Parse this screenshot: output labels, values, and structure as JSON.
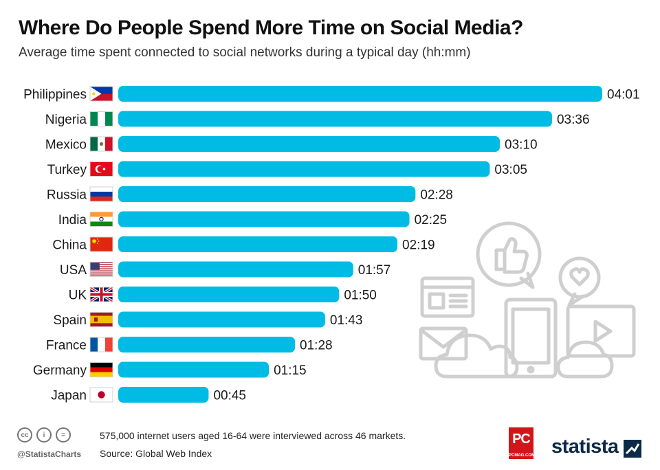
{
  "title": "Where Do People Spend More Time on Social Media?",
  "subtitle": "Average time spent connected to social networks during a typical day (hh:mm)",
  "chart_data": {
    "type": "bar",
    "orientation": "horizontal",
    "bar_color": "#00bce4",
    "categories": [
      "Philippines",
      "Nigeria",
      "Mexico",
      "Turkey",
      "Russia",
      "India",
      "China",
      "USA",
      "UK",
      "Spain",
      "France",
      "Germany",
      "Japan"
    ],
    "values": [
      241,
      216,
      190,
      185,
      148,
      145,
      139,
      117,
      110,
      103,
      88,
      75,
      45
    ],
    "value_labels": [
      "04:01",
      "03:36",
      "03:10",
      "03:05",
      "02:28",
      "02:25",
      "02:19",
      "01:57",
      "01:50",
      "01:43",
      "01:28",
      "01:15",
      "00:45"
    ],
    "value_unit": "minutes",
    "flags": [
      "philippines",
      "nigeria",
      "mexico",
      "turkey",
      "russia",
      "india",
      "china",
      "usa",
      "uk",
      "spain",
      "france",
      "germany",
      "japan"
    ],
    "xlim": [
      0,
      241
    ],
    "grid": false
  },
  "footer": {
    "note": "575,000 internet users aged 16-64 were interviewed across 46 markets.",
    "source": "Source: Global Web Index",
    "handle": "@StatistaCharts",
    "cc_icons": [
      "cc",
      "i",
      "="
    ]
  },
  "logos": {
    "pc_main": "PC",
    "pc_sub": "PCMAG.COM",
    "statista": "statista"
  },
  "illustration_icons": [
    "thumbs-up-bubble-icon",
    "heart-bubble-icon",
    "browser-window-icon",
    "envelope-icon",
    "cloud-icon",
    "tablet-icon",
    "video-player-icon"
  ]
}
